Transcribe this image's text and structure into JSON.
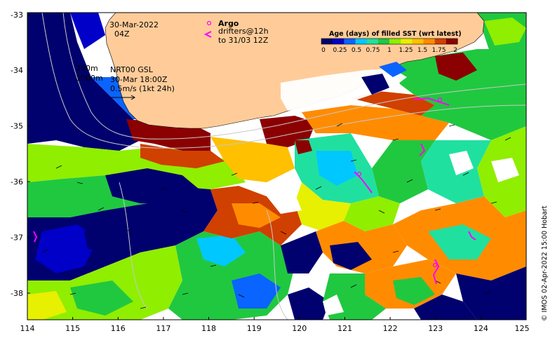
{
  "map": {
    "x_ticks": [
      "114",
      "115",
      "116",
      "117",
      "118",
      "119",
      "120",
      "121",
      "122",
      "123",
      "124",
      "125"
    ],
    "y_ticks": [
      "-33",
      "-34",
      "-35",
      "-36",
      "-37",
      "-38"
    ],
    "lon_range": [
      114,
      125
    ],
    "lat_range": [
      -38.5,
      -33
    ]
  },
  "annotations": {
    "date_line": "30-Mar-2022",
    "time_line": "04Z",
    "isobath_1": "200m",
    "isobath_2": "1000m",
    "current_product": "NRT00 GSL",
    "current_time": "30-Mar 18:00Z",
    "current_scale": "0.5m/s (1kt 24h)",
    "argo_label": "Argo",
    "drifter_line_1": "drifters@12h",
    "drifter_line_2": "to 31/03 12Z"
  },
  "colorbar": {
    "title": "Age (days) of filled SST (wrt latest)",
    "labels": [
      "0",
      "0.25",
      "0.5",
      "0.75",
      "1",
      "1.25",
      "1.5",
      "1.75",
      "2"
    ],
    "colors": [
      "#00006e",
      "#0000c8",
      "#0a64ff",
      "#00c8ff",
      "#20e0a0",
      "#20c840",
      "#90ee00",
      "#e6f000",
      "#ffc000",
      "#ff8c00",
      "#d04000",
      "#8b0000"
    ]
  },
  "credit": "© IMOS 02-Apr-2022 15:00 Hobart",
  "colors": {
    "land": "#ffcc99",
    "argo": "#ff00ff",
    "drifter": "#ff00ff",
    "isobath": "#c8c8c8"
  }
}
